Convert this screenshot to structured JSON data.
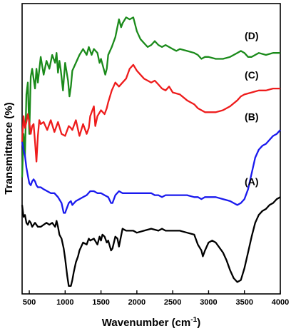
{
  "chart_data": {
    "type": "line",
    "xlabel": "Wavenumber (cm",
    "xlabel_sup": "-1",
    "xlabel_close": ")",
    "ylabel": "Transmittance (%)",
    "xlim": [
      400,
      4000
    ],
    "x_ticks": [
      500,
      1000,
      1500,
      2000,
      2500,
      3000,
      3500,
      4000
    ],
    "y_ticks_shown": false,
    "grid": false,
    "series": [
      {
        "name": "(D)",
        "color": "#1a8a1a",
        "points": [
          [
            400,
            3.4
          ],
          [
            420,
            5.6
          ],
          [
            440,
            4.5
          ],
          [
            460,
            7.6
          ],
          [
            480,
            8.2
          ],
          [
            500,
            5.6
          ],
          [
            520,
            8.5
          ],
          [
            540,
            8.9
          ],
          [
            560,
            8.4
          ],
          [
            580,
            7.9
          ],
          [
            600,
            8.9
          ],
          [
            620,
            8.2
          ],
          [
            660,
            9.5
          ],
          [
            700,
            8.6
          ],
          [
            740,
            9.3
          ],
          [
            780,
            8.9
          ],
          [
            820,
            9.6
          ],
          [
            860,
            9.2
          ],
          [
            880,
            9.7
          ],
          [
            900,
            8.7
          ],
          [
            920,
            9.3
          ],
          [
            940,
            8.8
          ],
          [
            970,
            7.8
          ],
          [
            1000,
            9.2
          ],
          [
            1040,
            8.3
          ],
          [
            1060,
            7.5
          ],
          [
            1080,
            8.0
          ],
          [
            1100,
            8.8
          ],
          [
            1150,
            9.2
          ],
          [
            1200,
            9.6
          ],
          [
            1250,
            9.9
          ],
          [
            1300,
            9.6
          ],
          [
            1330,
            10.0
          ],
          [
            1350,
            9.8
          ],
          [
            1370,
            9.6
          ],
          [
            1400,
            9.9
          ],
          [
            1450,
            9.7
          ],
          [
            1480,
            9.2
          ],
          [
            1500,
            9.4
          ],
          [
            1560,
            8.6
          ],
          [
            1580,
            8.9
          ],
          [
            1600,
            9.6
          ],
          [
            1650,
            10.0
          ],
          [
            1700,
            10.5
          ],
          [
            1750,
            11.4
          ],
          [
            1780,
            11.0
          ],
          [
            1800,
            11.2
          ],
          [
            1850,
            11.5
          ],
          [
            1900,
            11.4
          ],
          [
            1950,
            11.5
          ],
          [
            2000,
            10.8
          ],
          [
            2050,
            10.4
          ],
          [
            2100,
            10.2
          ],
          [
            2150,
            10.0
          ],
          [
            2200,
            10.1
          ],
          [
            2250,
            10.3
          ],
          [
            2300,
            10.1
          ],
          [
            2350,
            10.0
          ],
          [
            2400,
            10.1
          ],
          [
            2450,
            10.0
          ],
          [
            2500,
            9.9
          ],
          [
            2550,
            9.8
          ],
          [
            2600,
            9.9
          ],
          [
            2700,
            9.8
          ],
          [
            2800,
            9.7
          ],
          [
            2850,
            9.6
          ],
          [
            2900,
            9.4
          ],
          [
            2950,
            9.5
          ],
          [
            3000,
            9.5
          ],
          [
            3100,
            9.4
          ],
          [
            3200,
            9.4
          ],
          [
            3300,
            9.5
          ],
          [
            3400,
            9.7
          ],
          [
            3450,
            9.8
          ],
          [
            3500,
            9.7
          ],
          [
            3550,
            9.5
          ],
          [
            3600,
            9.5
          ],
          [
            3700,
            9.7
          ],
          [
            3800,
            9.6
          ],
          [
            3900,
            9.7
          ],
          [
            4000,
            9.7
          ]
        ]
      },
      {
        "name": "(C)",
        "color": "#ee1c1c",
        "points": [
          [
            400,
            5.2
          ],
          [
            420,
            6.5
          ],
          [
            440,
            5.9
          ],
          [
            460,
            6.2
          ],
          [
            480,
            6.6
          ],
          [
            500,
            6.2
          ],
          [
            520,
            5.6
          ],
          [
            540,
            6.0
          ],
          [
            560,
            6.1
          ],
          [
            580,
            5.2
          ],
          [
            600,
            4.2
          ],
          [
            620,
            5.5
          ],
          [
            640,
            6.3
          ],
          [
            660,
            6.1
          ],
          [
            700,
            6.2
          ],
          [
            750,
            5.8
          ],
          [
            800,
            6.3
          ],
          [
            850,
            5.7
          ],
          [
            900,
            6.2
          ],
          [
            950,
            5.6
          ],
          [
            1000,
            5.5
          ],
          [
            1050,
            6.0
          ],
          [
            1080,
            5.9
          ],
          [
            1100,
            5.8
          ],
          [
            1150,
            6.3
          ],
          [
            1200,
            5.5
          ],
          [
            1250,
            6.1
          ],
          [
            1300,
            5.6
          ],
          [
            1330,
            5.9
          ],
          [
            1350,
            6.5
          ],
          [
            1400,
            7.0
          ],
          [
            1420,
            6.0
          ],
          [
            1450,
            6.5
          ],
          [
            1500,
            6.8
          ],
          [
            1550,
            6.6
          ],
          [
            1580,
            6.9
          ],
          [
            1600,
            7.2
          ],
          [
            1650,
            7.8
          ],
          [
            1700,
            8.2
          ],
          [
            1750,
            8.0
          ],
          [
            1800,
            8.2
          ],
          [
            1850,
            8.4
          ],
          [
            1900,
            8.9
          ],
          [
            1950,
            9.1
          ],
          [
            2000,
            8.8
          ],
          [
            2050,
            8.6
          ],
          [
            2100,
            8.4
          ],
          [
            2150,
            8.3
          ],
          [
            2200,
            8.2
          ],
          [
            2250,
            8.3
          ],
          [
            2300,
            8.1
          ],
          [
            2350,
            7.9
          ],
          [
            2400,
            7.8
          ],
          [
            2450,
            8.0
          ],
          [
            2500,
            7.7
          ],
          [
            2600,
            7.6
          ],
          [
            2700,
            7.3
          ],
          [
            2800,
            7.1
          ],
          [
            2850,
            6.9
          ],
          [
            2900,
            6.8
          ],
          [
            2950,
            6.7
          ],
          [
            3000,
            6.7
          ],
          [
            3100,
            6.7
          ],
          [
            3200,
            6.8
          ],
          [
            3300,
            7.0
          ],
          [
            3400,
            7.3
          ],
          [
            3450,
            7.5
          ],
          [
            3500,
            7.6
          ],
          [
            3600,
            7.7
          ],
          [
            3700,
            7.8
          ],
          [
            3800,
            7.8
          ],
          [
            3900,
            7.9
          ],
          [
            4000,
            7.9
          ]
        ]
      },
      {
        "name": "(B)",
        "color": "#1a1aee",
        "points": [
          [
            400,
            5.2
          ],
          [
            420,
            4.8
          ],
          [
            440,
            4.5
          ],
          [
            460,
            3.9
          ],
          [
            480,
            3.5
          ],
          [
            500,
            3.1
          ],
          [
            520,
            3.0
          ],
          [
            540,
            3.2
          ],
          [
            560,
            3.3
          ],
          [
            580,
            3.2
          ],
          [
            600,
            3.0
          ],
          [
            620,
            2.9
          ],
          [
            660,
            2.9
          ],
          [
            700,
            2.8
          ],
          [
            750,
            2.7
          ],
          [
            800,
            2.6
          ],
          [
            850,
            2.6
          ],
          [
            900,
            2.4
          ],
          [
            950,
            2.1
          ],
          [
            980,
            1.6
          ],
          [
            1000,
            1.6
          ],
          [
            1020,
            1.8
          ],
          [
            1050,
            2.1
          ],
          [
            1080,
            2.2
          ],
          [
            1100,
            2.0
          ],
          [
            1150,
            2.2
          ],
          [
            1200,
            2.3
          ],
          [
            1250,
            2.4
          ],
          [
            1300,
            2.5
          ],
          [
            1350,
            2.7
          ],
          [
            1400,
            2.7
          ],
          [
            1450,
            2.6
          ],
          [
            1500,
            2.6
          ],
          [
            1550,
            2.5
          ],
          [
            1600,
            2.4
          ],
          [
            1640,
            2.1
          ],
          [
            1660,
            2.1
          ],
          [
            1700,
            2.5
          ],
          [
            1750,
            2.7
          ],
          [
            1800,
            2.6
          ],
          [
            1850,
            2.6
          ],
          [
            1900,
            2.6
          ],
          [
            1950,
            2.6
          ],
          [
            2000,
            2.6
          ],
          [
            2050,
            2.6
          ],
          [
            2100,
            2.6
          ],
          [
            2150,
            2.6
          ],
          [
            2200,
            2.6
          ],
          [
            2250,
            2.5
          ],
          [
            2300,
            2.5
          ],
          [
            2350,
            2.4
          ],
          [
            2400,
            2.5
          ],
          [
            2450,
            2.5
          ],
          [
            2500,
            2.5
          ],
          [
            2600,
            2.5
          ],
          [
            2700,
            2.5
          ],
          [
            2800,
            2.4
          ],
          [
            2850,
            2.4
          ],
          [
            2900,
            2.3
          ],
          [
            2950,
            2.4
          ],
          [
            3000,
            2.4
          ],
          [
            3100,
            2.4
          ],
          [
            3200,
            2.3
          ],
          [
            3300,
            2.2
          ],
          [
            3350,
            2.1
          ],
          [
            3400,
            2.0
          ],
          [
            3450,
            2.1
          ],
          [
            3500,
            2.3
          ],
          [
            3550,
            2.8
          ],
          [
            3600,
            3.6
          ],
          [
            3650,
            4.4
          ],
          [
            3700,
            4.8
          ],
          [
            3750,
            5.0
          ],
          [
            3800,
            5.1
          ],
          [
            3850,
            5.3
          ],
          [
            3900,
            5.5
          ],
          [
            3950,
            5.6
          ],
          [
            4000,
            5.8
          ]
        ]
      },
      {
        "name": "(A)",
        "color": "#000000",
        "points": [
          [
            400,
            2.0
          ],
          [
            420,
            1.4
          ],
          [
            440,
            1.5
          ],
          [
            460,
            1.1
          ],
          [
            480,
            1.0
          ],
          [
            500,
            1.2
          ],
          [
            520,
            1.1
          ],
          [
            540,
            0.9
          ],
          [
            560,
            1.0
          ],
          [
            580,
            1.1
          ],
          [
            600,
            1.0
          ],
          [
            620,
            0.9
          ],
          [
            660,
            0.9
          ],
          [
            700,
            1.0
          ],
          [
            740,
            1.1
          ],
          [
            780,
            1.0
          ],
          [
            820,
            1.1
          ],
          [
            860,
            0.9
          ],
          [
            880,
            1.2
          ],
          [
            900,
            0.9
          ],
          [
            920,
            0.5
          ],
          [
            950,
            0.3
          ],
          [
            980,
            -0.2
          ],
          [
            1000,
            -0.7
          ],
          [
            1030,
            -1.6
          ],
          [
            1050,
            -2.1
          ],
          [
            1080,
            -2.1
          ],
          [
            1100,
            -1.8
          ],
          [
            1120,
            -1.4
          ],
          [
            1150,
            -0.9
          ],
          [
            1180,
            -0.6
          ],
          [
            1200,
            -0.3
          ],
          [
            1250,
            0.1
          ],
          [
            1300,
            0.0
          ],
          [
            1330,
            0.3
          ],
          [
            1350,
            0.2
          ],
          [
            1400,
            0.3
          ],
          [
            1450,
            0.0
          ],
          [
            1480,
            0.4
          ],
          [
            1500,
            0.2
          ],
          [
            1520,
            0.5
          ],
          [
            1550,
            0.4
          ],
          [
            1580,
            0.1
          ],
          [
            1600,
            0.2
          ],
          [
            1640,
            -0.3
          ],
          [
            1660,
            -0.2
          ],
          [
            1700,
            0.4
          ],
          [
            1730,
            0.3
          ],
          [
            1750,
            -0.1
          ],
          [
            1800,
            0.8
          ],
          [
            1850,
            0.7
          ],
          [
            1900,
            0.7
          ],
          [
            1950,
            0.7
          ],
          [
            2000,
            0.6
          ],
          [
            2100,
            0.7
          ],
          [
            2200,
            0.8
          ],
          [
            2300,
            0.7
          ],
          [
            2350,
            0.8
          ],
          [
            2400,
            0.7
          ],
          [
            2500,
            0.7
          ],
          [
            2600,
            0.7
          ],
          [
            2700,
            0.6
          ],
          [
            2800,
            0.5
          ],
          [
            2850,
            0.0
          ],
          [
            2900,
            -0.3
          ],
          [
            2920,
            -0.6
          ],
          [
            2950,
            -0.3
          ],
          [
            3000,
            0.1
          ],
          [
            3050,
            0.2
          ],
          [
            3100,
            0.1
          ],
          [
            3200,
            -0.4
          ],
          [
            3250,
            -0.8
          ],
          [
            3300,
            -1.3
          ],
          [
            3350,
            -1.7
          ],
          [
            3400,
            -1.9
          ],
          [
            3450,
            -1.8
          ],
          [
            3500,
            -1.2
          ],
          [
            3550,
            -0.4
          ],
          [
            3600,
            0.4
          ],
          [
            3650,
            1.1
          ],
          [
            3700,
            1.5
          ],
          [
            3750,
            1.7
          ],
          [
            3800,
            1.8
          ],
          [
            3850,
            2.0
          ],
          [
            3900,
            2.1
          ],
          [
            3950,
            2.3
          ],
          [
            4000,
            2.4
          ]
        ]
      }
    ],
    "series_labels": [
      {
        "text": "(D)",
        "x": 3600,
        "y": 10.4
      },
      {
        "text": "(C)",
        "x": 3600,
        "y": 8.4
      },
      {
        "text": "(B)",
        "x": 3600,
        "y": 6.3
      },
      {
        "text": "(A)",
        "x": 3600,
        "y": 3.0
      }
    ],
    "ylim": [
      -2.5,
      12.2
    ]
  }
}
